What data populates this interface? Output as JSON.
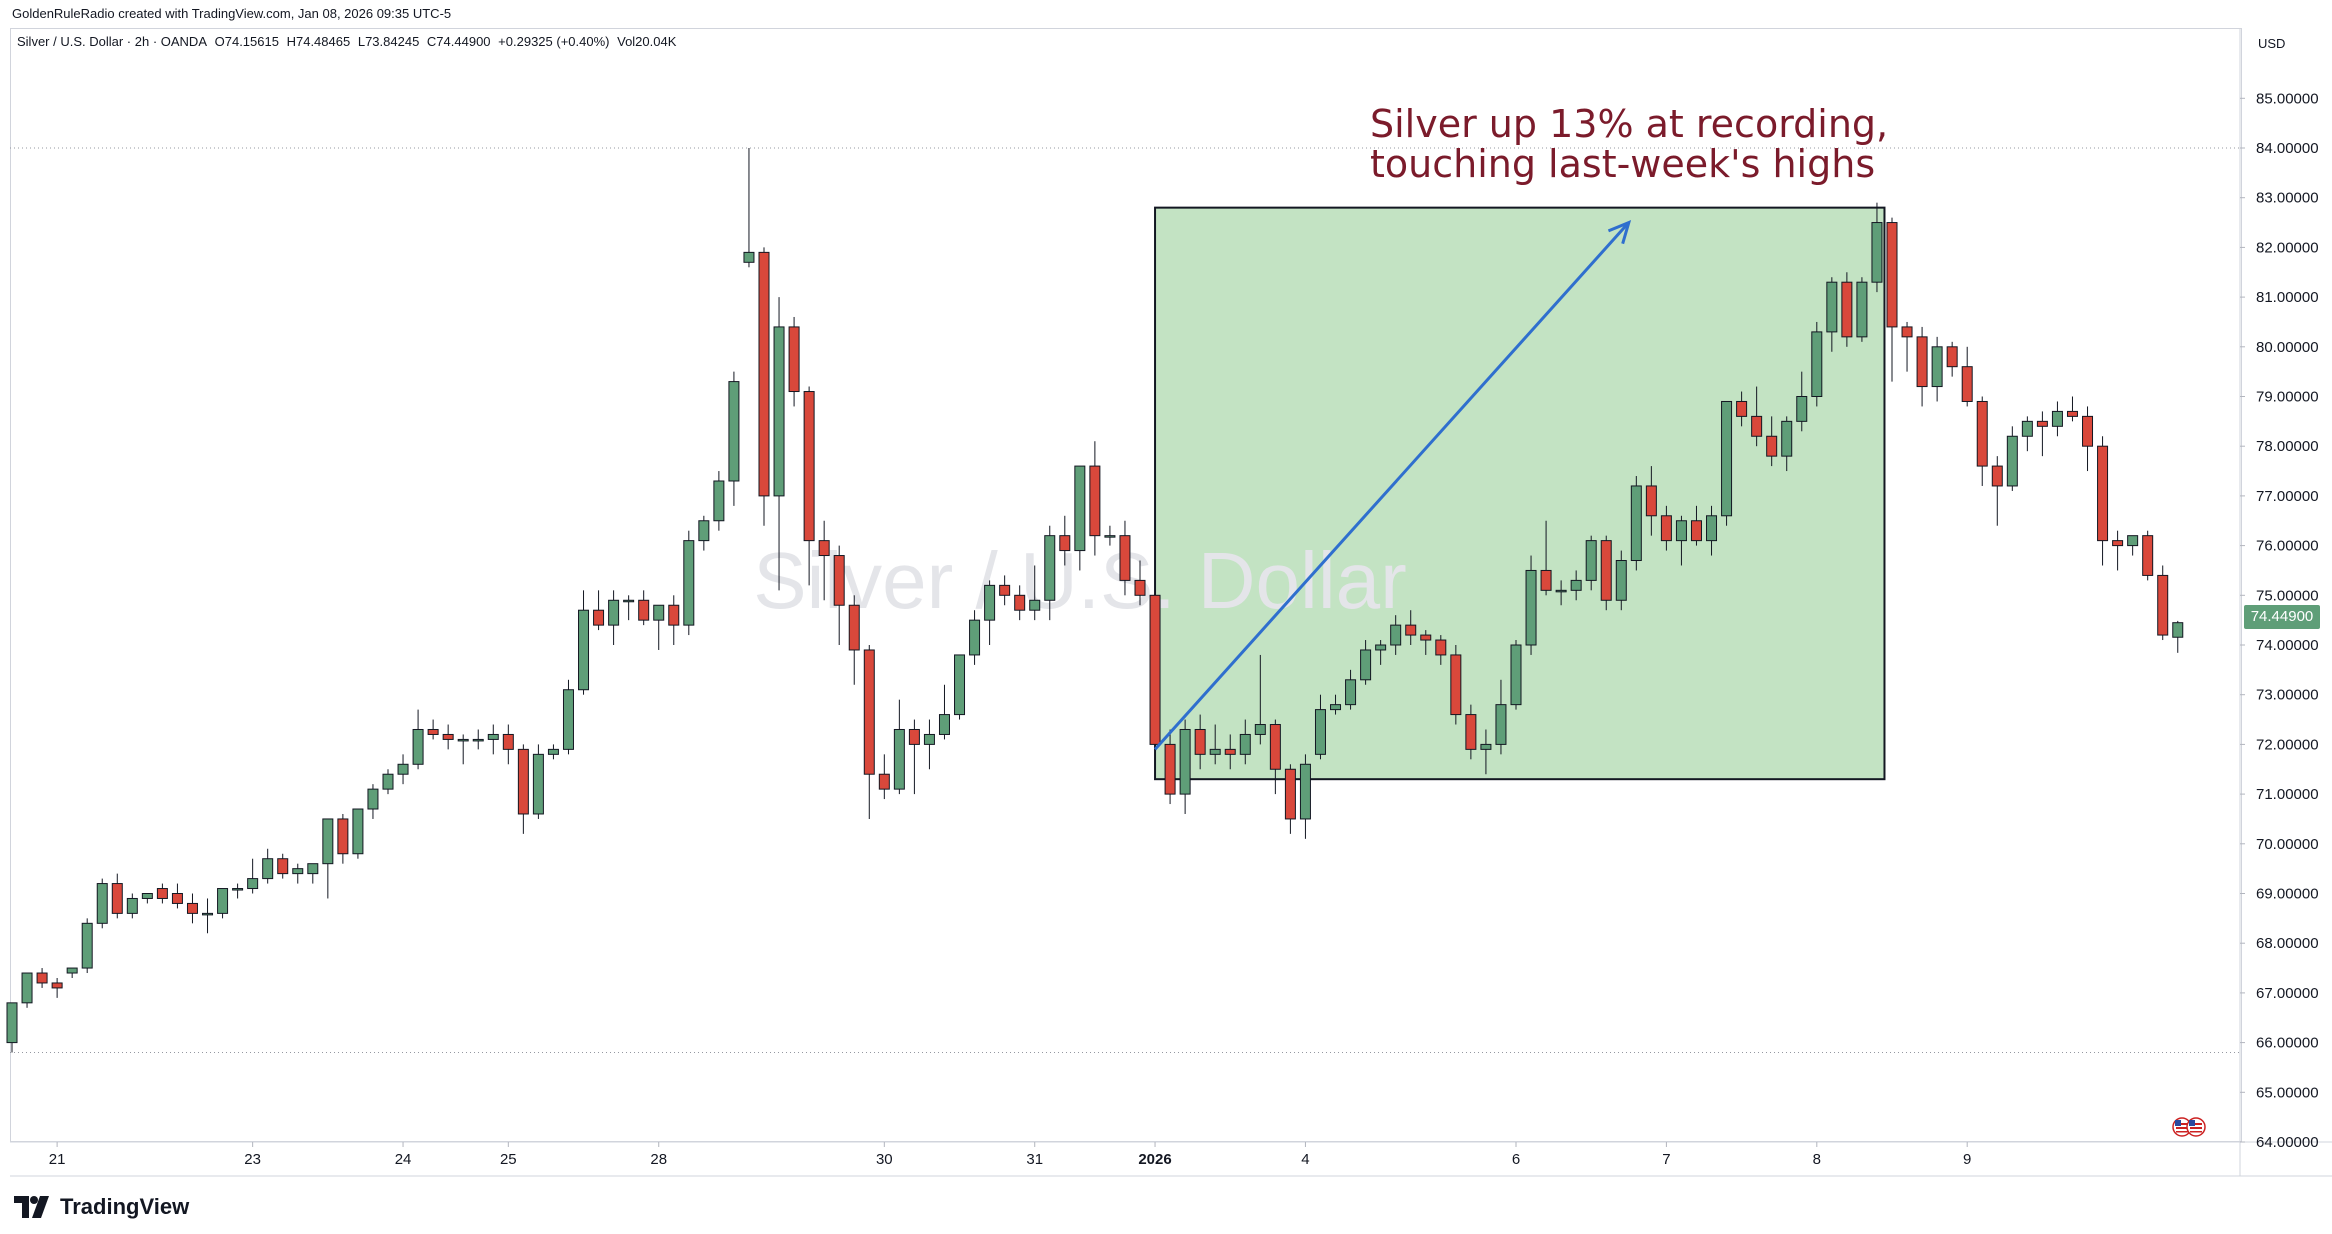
{
  "header": {
    "credit": "GoldenRuleRadio created with TradingView.com, Jan 08, 2026 09:35 UTC-5",
    "symbol": "Silver / U.S. Dollar · 2h · OANDA",
    "open": "O74.15615",
    "high": "H74.48465",
    "low": "L73.84245",
    "close": "C74.44900",
    "change": "+0.29325 (+0.40%)",
    "volume": "Vol20.04K"
  },
  "watermark": "Silver / U.S. Dollar",
  "currency": "USD",
  "last_price": "74.44900",
  "annotation": "Silver up 13% at recording,\ntouching last-week's highs",
  "logo_text": "TradingView",
  "colors": {
    "up": "#5f9e78",
    "down": "#d9483b",
    "highlight_fill": "#c3e3c3",
    "arrow": "#2f6fce",
    "annotation": "#7b1b2b"
  },
  "chart_data": {
    "type": "candlestick",
    "timeframe": "2h",
    "ylim": [
      64,
      85.6
    ],
    "y_ticks": [
      "64.00000",
      "65.00000",
      "66.00000",
      "67.00000",
      "68.00000",
      "69.00000",
      "70.00000",
      "71.00000",
      "72.00000",
      "73.00000",
      "74.00000",
      "75.00000",
      "76.00000",
      "77.00000",
      "78.00000",
      "79.00000",
      "80.00000",
      "81.00000",
      "82.00000",
      "83.00000",
      "84.00000",
      "85.00000"
    ],
    "x_ticks": [
      {
        "label": "21",
        "index": 3
      },
      {
        "label": "23",
        "index": 16
      },
      {
        "label": "24",
        "index": 26
      },
      {
        "label": "25",
        "index": 33
      },
      {
        "label": "28",
        "index": 43
      },
      {
        "label": "30",
        "index": 58
      },
      {
        "label": "31",
        "index": 68
      },
      {
        "label": "2026",
        "index": 76
      },
      {
        "label": "4",
        "index": 86
      },
      {
        "label": "6",
        "index": 100
      },
      {
        "label": "7",
        "index": 110
      },
      {
        "label": "8",
        "index": 120
      },
      {
        "label": "9",
        "index": 130
      }
    ],
    "reference_lines": [
      84.0,
      65.8
    ],
    "highlight_box": {
      "x_start_index": 76,
      "x_end_index": 124.5,
      "y_top": 82.8,
      "y_bottom": 71.3
    },
    "trend_arrow": {
      "from": [
        76,
        71.9
      ],
      "to": [
        107.5,
        82.5
      ]
    },
    "candles": [
      [
        66.0,
        66.8,
        65.8,
        66.8
      ],
      [
        66.8,
        67.4,
        66.7,
        67.4
      ],
      [
        67.4,
        67.5,
        67.1,
        67.2
      ],
      [
        67.2,
        67.3,
        66.9,
        67.1
      ],
      [
        67.4,
        67.5,
        67.3,
        67.5
      ],
      [
        67.5,
        68.5,
        67.4,
        68.4
      ],
      [
        68.4,
        69.3,
        68.3,
        69.2
      ],
      [
        69.2,
        69.4,
        68.5,
        68.6
      ],
      [
        68.6,
        69.0,
        68.5,
        68.9
      ],
      [
        68.9,
        69.0,
        68.8,
        69.0
      ],
      [
        69.1,
        69.2,
        68.8,
        68.9
      ],
      [
        69.0,
        69.2,
        68.7,
        68.8
      ],
      [
        68.8,
        69.0,
        68.4,
        68.6
      ],
      [
        68.6,
        68.9,
        68.2,
        68.6
      ],
      [
        68.6,
        69.1,
        68.5,
        69.1
      ],
      [
        69.1,
        69.2,
        68.9,
        69.1
      ],
      [
        69.1,
        69.7,
        69.0,
        69.3
      ],
      [
        69.3,
        69.9,
        69.2,
        69.7
      ],
      [
        69.7,
        69.8,
        69.3,
        69.4
      ],
      [
        69.4,
        69.6,
        69.2,
        69.5
      ],
      [
        69.4,
        69.6,
        69.2,
        69.6
      ],
      [
        69.6,
        70.5,
        68.9,
        70.5
      ],
      [
        70.5,
        70.6,
        69.6,
        69.8
      ],
      [
        69.8,
        70.7,
        69.7,
        70.7
      ],
      [
        70.7,
        71.2,
        70.5,
        71.1
      ],
      [
        71.1,
        71.5,
        71.0,
        71.4
      ],
      [
        71.4,
        71.8,
        71.2,
        71.6
      ],
      [
        71.6,
        72.7,
        71.5,
        72.3
      ],
      [
        72.3,
        72.5,
        72.1,
        72.2
      ],
      [
        72.2,
        72.4,
        71.9,
        72.1
      ],
      [
        72.1,
        72.2,
        71.6,
        72.1
      ],
      [
        72.1,
        72.3,
        71.9,
        72.1
      ],
      [
        72.1,
        72.4,
        71.8,
        72.2
      ],
      [
        72.2,
        72.4,
        71.6,
        71.9
      ],
      [
        71.9,
        72.0,
        70.2,
        70.6
      ],
      [
        70.6,
        72.0,
        70.5,
        71.8
      ],
      [
        71.8,
        72.0,
        71.7,
        71.9
      ],
      [
        71.9,
        73.3,
        71.8,
        73.1
      ],
      [
        73.1,
        75.1,
        73.0,
        74.7
      ],
      [
        74.7,
        75.1,
        74.3,
        74.4
      ],
      [
        74.4,
        75.1,
        74.0,
        74.9
      ],
      [
        74.9,
        75.0,
        74.5,
        74.9
      ],
      [
        74.9,
        75.1,
        74.4,
        74.5
      ],
      [
        74.5,
        74.6,
        73.9,
        74.8
      ],
      [
        74.8,
        75.0,
        74.0,
        74.4
      ],
      [
        74.4,
        76.3,
        74.2,
        76.1
      ],
      [
        76.1,
        76.6,
        75.9,
        76.5
      ],
      [
        76.5,
        77.5,
        76.3,
        77.3
      ],
      [
        77.3,
        79.5,
        76.8,
        79.3
      ],
      [
        81.7,
        84.0,
        81.6,
        81.9
      ],
      [
        81.9,
        82.0,
        76.4,
        77.0
      ],
      [
        77.0,
        81.0,
        75.1,
        80.4
      ],
      [
        80.4,
        80.6,
        78.8,
        79.1
      ],
      [
        79.1,
        79.2,
        75.2,
        76.1
      ],
      [
        76.1,
        76.5,
        74.9,
        75.8
      ],
      [
        75.8,
        76.0,
        74.0,
        74.8
      ],
      [
        74.8,
        75.0,
        73.2,
        73.9
      ],
      [
        73.9,
        74.0,
        70.5,
        71.4
      ],
      [
        71.4,
        71.8,
        70.9,
        71.1
      ],
      [
        71.1,
        72.9,
        71.0,
        72.3
      ],
      [
        72.3,
        72.5,
        71.0,
        72.0
      ],
      [
        72.0,
        72.5,
        71.5,
        72.2
      ],
      [
        72.2,
        73.2,
        72.1,
        72.6
      ],
      [
        72.6,
        73.8,
        72.5,
        73.8
      ],
      [
        73.8,
        74.7,
        73.6,
        74.5
      ],
      [
        74.5,
        75.3,
        74.0,
        75.2
      ],
      [
        75.2,
        75.4,
        74.8,
        75.0
      ],
      [
        75.0,
        75.2,
        74.5,
        74.7
      ],
      [
        74.7,
        75.6,
        74.5,
        74.9
      ],
      [
        74.9,
        76.4,
        74.5,
        76.2
      ],
      [
        76.2,
        76.6,
        75.6,
        75.9
      ],
      [
        75.9,
        77.6,
        75.5,
        77.6
      ],
      [
        77.6,
        78.1,
        75.8,
        76.2
      ],
      [
        76.2,
        76.4,
        76.0,
        76.2
      ],
      [
        76.2,
        76.5,
        75.0,
        75.3
      ],
      [
        75.3,
        75.7,
        74.8,
        75.0
      ],
      [
        75.0,
        75.1,
        72.0,
        72.0
      ],
      [
        72.0,
        72.3,
        70.8,
        71.0
      ],
      [
        71.0,
        72.5,
        70.6,
        72.3
      ],
      [
        72.3,
        72.6,
        71.5,
        71.8
      ],
      [
        71.8,
        72.4,
        71.6,
        71.9
      ],
      [
        71.9,
        72.2,
        71.5,
        71.8
      ],
      [
        71.8,
        72.5,
        71.6,
        72.2
      ],
      [
        72.2,
        73.8,
        72.0,
        72.4
      ],
      [
        72.4,
        72.5,
        71.0,
        71.5
      ],
      [
        71.5,
        71.6,
        70.2,
        70.5
      ],
      [
        70.5,
        71.8,
        70.1,
        71.6
      ],
      [
        71.8,
        73.0,
        71.7,
        72.7
      ],
      [
        72.7,
        73.0,
        72.6,
        72.8
      ],
      [
        72.8,
        73.5,
        72.7,
        73.3
      ],
      [
        73.3,
        74.1,
        73.2,
        73.9
      ],
      [
        73.9,
        74.1,
        73.6,
        74.0
      ],
      [
        74.0,
        74.6,
        73.8,
        74.4
      ],
      [
        74.4,
        74.7,
        74.0,
        74.2
      ],
      [
        74.2,
        74.3,
        73.8,
        74.1
      ],
      [
        74.1,
        74.2,
        73.6,
        73.8
      ],
      [
        73.8,
        74.0,
        72.4,
        72.6
      ],
      [
        72.6,
        72.8,
        71.7,
        71.9
      ],
      [
        71.9,
        72.3,
        71.4,
        72.0
      ],
      [
        72.0,
        73.3,
        71.8,
        72.8
      ],
      [
        72.8,
        74.1,
        72.7,
        74.0
      ],
      [
        74.0,
        75.8,
        73.8,
        75.5
      ],
      [
        75.5,
        76.5,
        75.0,
        75.1
      ],
      [
        75.1,
        75.3,
        74.8,
        75.1
      ],
      [
        75.1,
        75.5,
        74.9,
        75.3
      ],
      [
        75.3,
        76.2,
        75.1,
        76.1
      ],
      [
        76.1,
        76.2,
        74.7,
        74.9
      ],
      [
        74.9,
        75.9,
        74.7,
        75.7
      ],
      [
        75.7,
        77.4,
        75.5,
        77.2
      ],
      [
        77.2,
        77.6,
        76.2,
        76.6
      ],
      [
        76.6,
        76.8,
        75.9,
        76.1
      ],
      [
        76.1,
        76.6,
        75.6,
        76.5
      ],
      [
        76.5,
        76.8,
        76.0,
        76.1
      ],
      [
        76.1,
        76.8,
        75.8,
        76.6
      ],
      [
        76.6,
        78.9,
        76.4,
        78.9
      ],
      [
        78.9,
        79.1,
        78.4,
        78.6
      ],
      [
        78.6,
        79.2,
        78.0,
        78.2
      ],
      [
        78.2,
        78.6,
        77.6,
        77.8
      ],
      [
        77.8,
        78.6,
        77.5,
        78.5
      ],
      [
        78.5,
        79.5,
        78.3,
        79.0
      ],
      [
        79.0,
        80.5,
        78.8,
        80.3
      ],
      [
        80.3,
        81.4,
        79.9,
        81.3
      ],
      [
        81.3,
        81.5,
        80.0,
        80.2
      ],
      [
        80.2,
        81.4,
        80.1,
        81.3
      ],
      [
        81.3,
        82.9,
        81.1,
        82.5
      ],
      [
        82.5,
        82.6,
        79.3,
        80.4
      ],
      [
        80.4,
        80.5,
        79.5,
        80.2
      ],
      [
        80.2,
        80.4,
        78.8,
        79.2
      ],
      [
        79.2,
        80.2,
        78.9,
        80.0
      ],
      [
        80.0,
        80.1,
        79.4,
        79.6
      ],
      [
        79.6,
        80.0,
        78.8,
        78.9
      ],
      [
        78.9,
        79.0,
        77.2,
        77.6
      ],
      [
        77.6,
        77.8,
        76.4,
        77.2
      ],
      [
        77.2,
        78.4,
        77.1,
        78.2
      ],
      [
        78.2,
        78.6,
        77.9,
        78.5
      ],
      [
        78.5,
        78.7,
        77.8,
        78.4
      ],
      [
        78.4,
        78.9,
        78.2,
        78.7
      ],
      [
        78.7,
        79.0,
        78.5,
        78.6
      ],
      [
        78.6,
        78.8,
        77.5,
        78.0
      ],
      [
        78.0,
        78.2,
        75.6,
        76.1
      ],
      [
        76.1,
        76.3,
        75.5,
        76.0
      ],
      [
        76.0,
        76.2,
        75.8,
        76.2
      ],
      [
        76.2,
        76.3,
        75.3,
        75.4
      ],
      [
        75.4,
        75.6,
        74.1,
        74.2
      ],
      [
        74.15615,
        74.48465,
        73.84245,
        74.449
      ]
    ]
  }
}
